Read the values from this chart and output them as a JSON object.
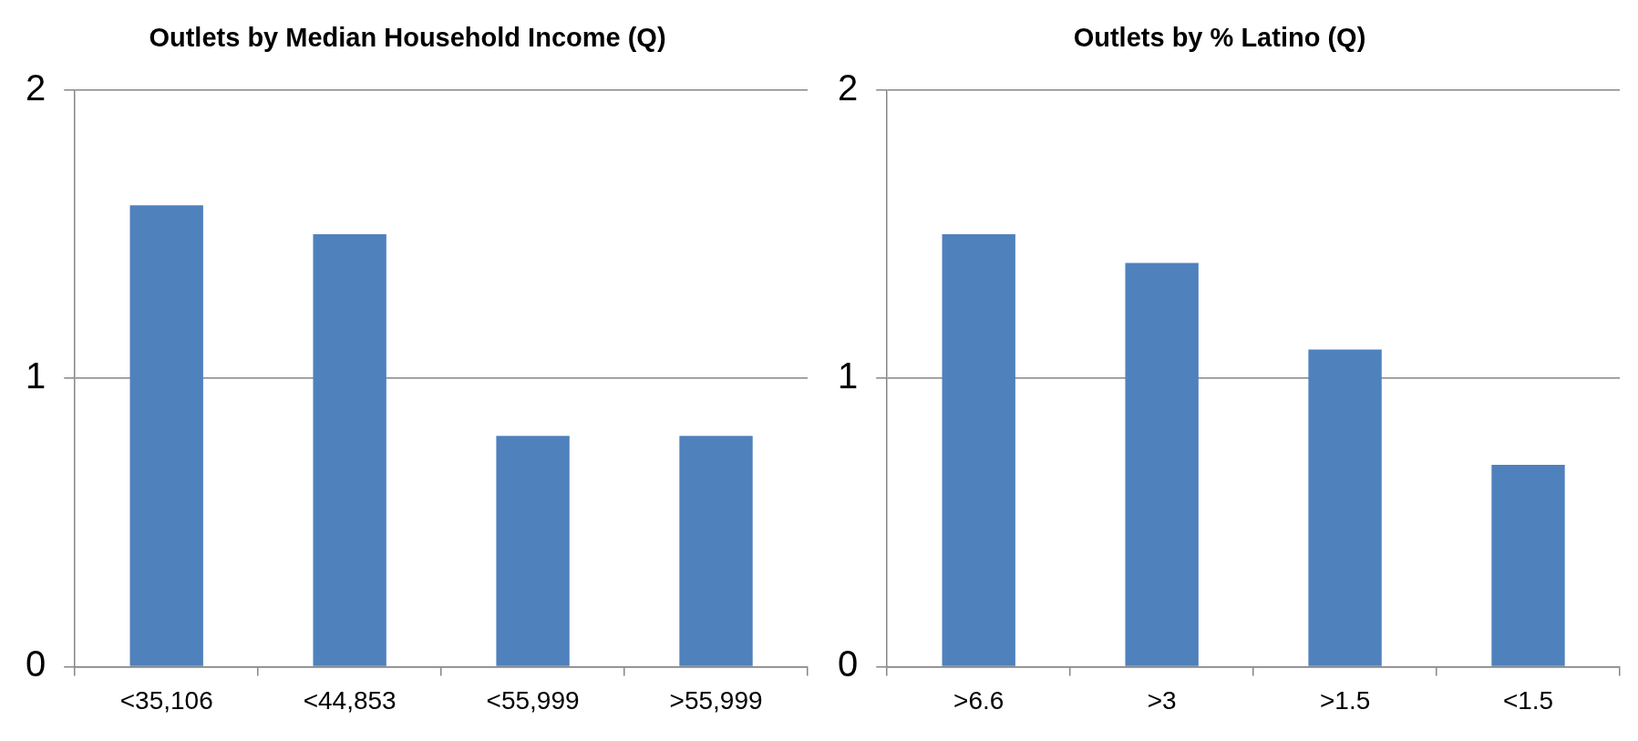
{
  "chart_data": [
    {
      "type": "bar",
      "title": "Outlets by Median Household Income (Q)",
      "categories": [
        "<35,106",
        "<44,853",
        "<55,999",
        ">55,999"
      ],
      "values": [
        1.6,
        1.5,
        0.8,
        0.8
      ],
      "color": "#4f81bd",
      "ylim": [
        0,
        2
      ],
      "yticks": [
        0,
        1,
        2
      ],
      "grid": "y",
      "legend": false
    },
    {
      "type": "bar",
      "title": "Outlets by % Latino (Q)",
      "categories": [
        ">6.6",
        ">3",
        ">1.5",
        "<1.5"
      ],
      "values": [
        1.5,
        1.4,
        1.1,
        0.7
      ],
      "color": "#4f81bd",
      "ylim": [
        0,
        2
      ],
      "yticks": [
        0,
        1,
        2
      ],
      "grid": "y",
      "legend": false
    }
  ]
}
